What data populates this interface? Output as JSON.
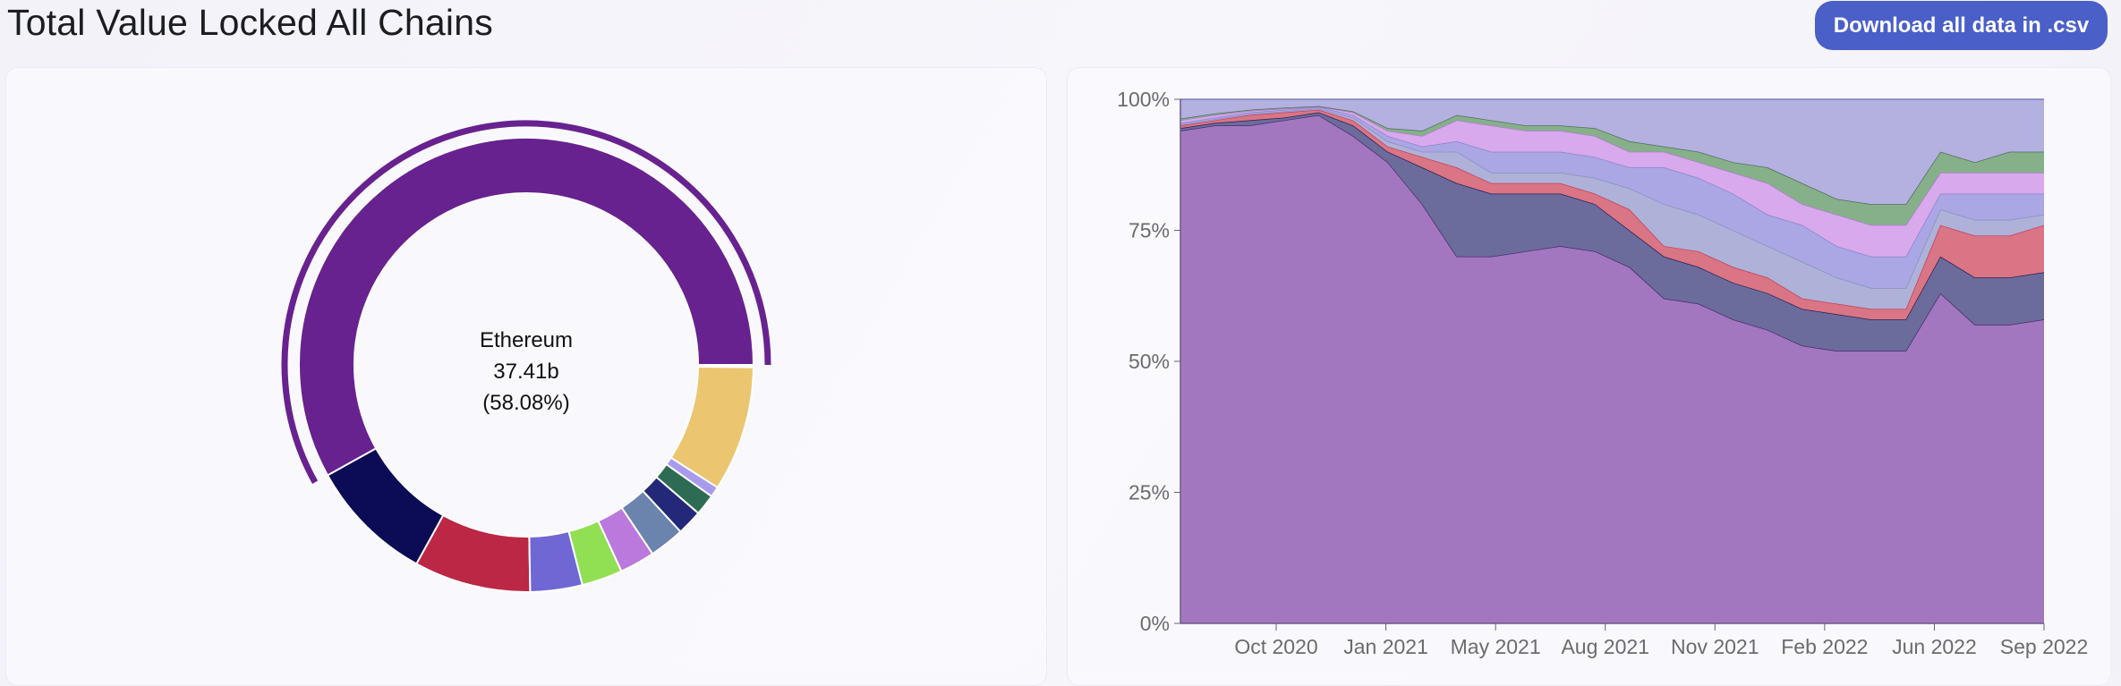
{
  "header": {
    "title": "Total Value Locked All Chains",
    "download_label": "Download all data in .csv"
  },
  "chart_data": [
    {
      "type": "pie",
      "variant": "donut",
      "center_label": {
        "name": "Ethereum",
        "value": "37.41b",
        "percent": "(58.08%)"
      },
      "highlighted": "Ethereum",
      "slices": [
        {
          "name": "Ethereum",
          "percent": 58.08,
          "color": "#68228f"
        },
        {
          "percent": 8.9,
          "color": "#0b0c55"
        },
        {
          "percent": 8.3,
          "color": "#bb2744"
        },
        {
          "percent": 3.7,
          "color": "#6f67d4"
        },
        {
          "percent": 2.9,
          "color": "#91e054"
        },
        {
          "percent": 2.5,
          "color": "#bb78dd"
        },
        {
          "percent": 2.5,
          "color": "#6a84ad"
        },
        {
          "percent": 1.8,
          "color": "#232978"
        },
        {
          "percent": 1.5,
          "color": "#2e6b54"
        },
        {
          "percent": 0.75,
          "color": "#a89bef"
        },
        {
          "percent": 8.9,
          "color": "#ecc570"
        }
      ]
    },
    {
      "type": "area",
      "stacked": "percent",
      "ylim": [
        0,
        100
      ],
      "yticks": [
        "0%",
        "25%",
        "50%",
        "75%",
        "100%"
      ],
      "xticks": [
        "Oct 2020",
        "Jan 2021",
        "May 2021",
        "Aug 2021",
        "Nov 2021",
        "Feb 2022",
        "Jun 2022",
        "Sep 2022"
      ],
      "grid": false,
      "x": [
        "2020-08",
        "2020-09",
        "2020-10",
        "2020-11",
        "2020-12",
        "2021-01",
        "2021-02",
        "2021-03",
        "2021-04",
        "2021-05",
        "2021-06",
        "2021-07",
        "2021-08",
        "2021-09",
        "2021-10",
        "2021-11",
        "2021-12",
        "2022-01",
        "2022-02",
        "2022-03",
        "2022-04",
        "2022-05",
        "2022-06",
        "2022-07",
        "2022-08",
        "2022-09"
      ],
      "series": [
        {
          "color": "#a277bf",
          "line": "#4a2a6e",
          "values": [
            94,
            95,
            95,
            96,
            97,
            93,
            88,
            80,
            70,
            70,
            71,
            72,
            71,
            68,
            62,
            61,
            58,
            56,
            53,
            52,
            52,
            52,
            63,
            57,
            57,
            58
          ]
        },
        {
          "color": "#6b6c9c",
          "line": "#2b2050",
          "values": [
            0.5,
            0.5,
            1,
            0.5,
            0.5,
            2,
            2,
            7,
            14,
            12,
            11,
            10,
            9,
            7,
            8,
            7,
            7,
            7,
            7,
            7,
            6,
            6,
            7,
            9,
            9,
            9
          ]
        },
        {
          "color": "#d97585",
          "line": "#c2405c",
          "values": [
            0.5,
            0.5,
            1,
            1,
            0.5,
            1,
            1,
            2,
            3,
            2,
            2,
            2,
            2,
            4,
            2,
            3,
            3,
            3,
            2,
            2,
            2,
            2,
            6,
            8,
            8,
            9
          ]
        },
        {
          "color": "#aeb2d8",
          "line": "#8a8fc0",
          "values": [
            0.2,
            0.2,
            0.2,
            0.2,
            0.2,
            0.5,
            1,
            1,
            3,
            2,
            2,
            2,
            3,
            4,
            8,
            7,
            7,
            6,
            7,
            5,
            4,
            4,
            3,
            3,
            3,
            2
          ]
        },
        {
          "color": "#aba6e4",
          "line": "#8a84cc",
          "values": [
            0.3,
            0.3,
            0.3,
            0.3,
            0.3,
            0.5,
            1,
            1,
            2,
            4,
            4,
            4,
            4,
            4,
            7,
            7,
            7,
            6,
            7,
            6,
            6,
            6,
            3,
            5,
            5,
            4
          ]
        },
        {
          "color": "#d8a9ec",
          "line": "#b07bd0",
          "values": [
            0.5,
            0.5,
            0.3,
            0.2,
            0.1,
            0.5,
            1,
            2,
            4,
            5,
            4,
            4,
            4,
            3,
            3,
            3,
            4,
            6,
            4,
            6,
            6,
            6,
            4,
            4,
            4,
            4
          ]
        },
        {
          "color": "#86b08a",
          "line": "#4d6f5a",
          "values": [
            0.3,
            0.3,
            0.2,
            0.2,
            0.1,
            0.2,
            0.5,
            1,
            1,
            1,
            1,
            1,
            1.5,
            2,
            1,
            2,
            2,
            3,
            4,
            3,
            4,
            4,
            4,
            2,
            4,
            4
          ]
        },
        {
          "color": "#b4b0e0",
          "line": "#7d7ab8",
          "values": [
            3.7,
            2.7,
            2,
            1.6,
            1.3,
            2.3,
            5.5,
            6,
            3,
            4,
            5,
            5,
            5.5,
            8,
            9,
            10,
            12,
            13,
            16,
            19,
            20,
            20,
            10,
            12,
            10,
            10
          ]
        }
      ]
    }
  ]
}
